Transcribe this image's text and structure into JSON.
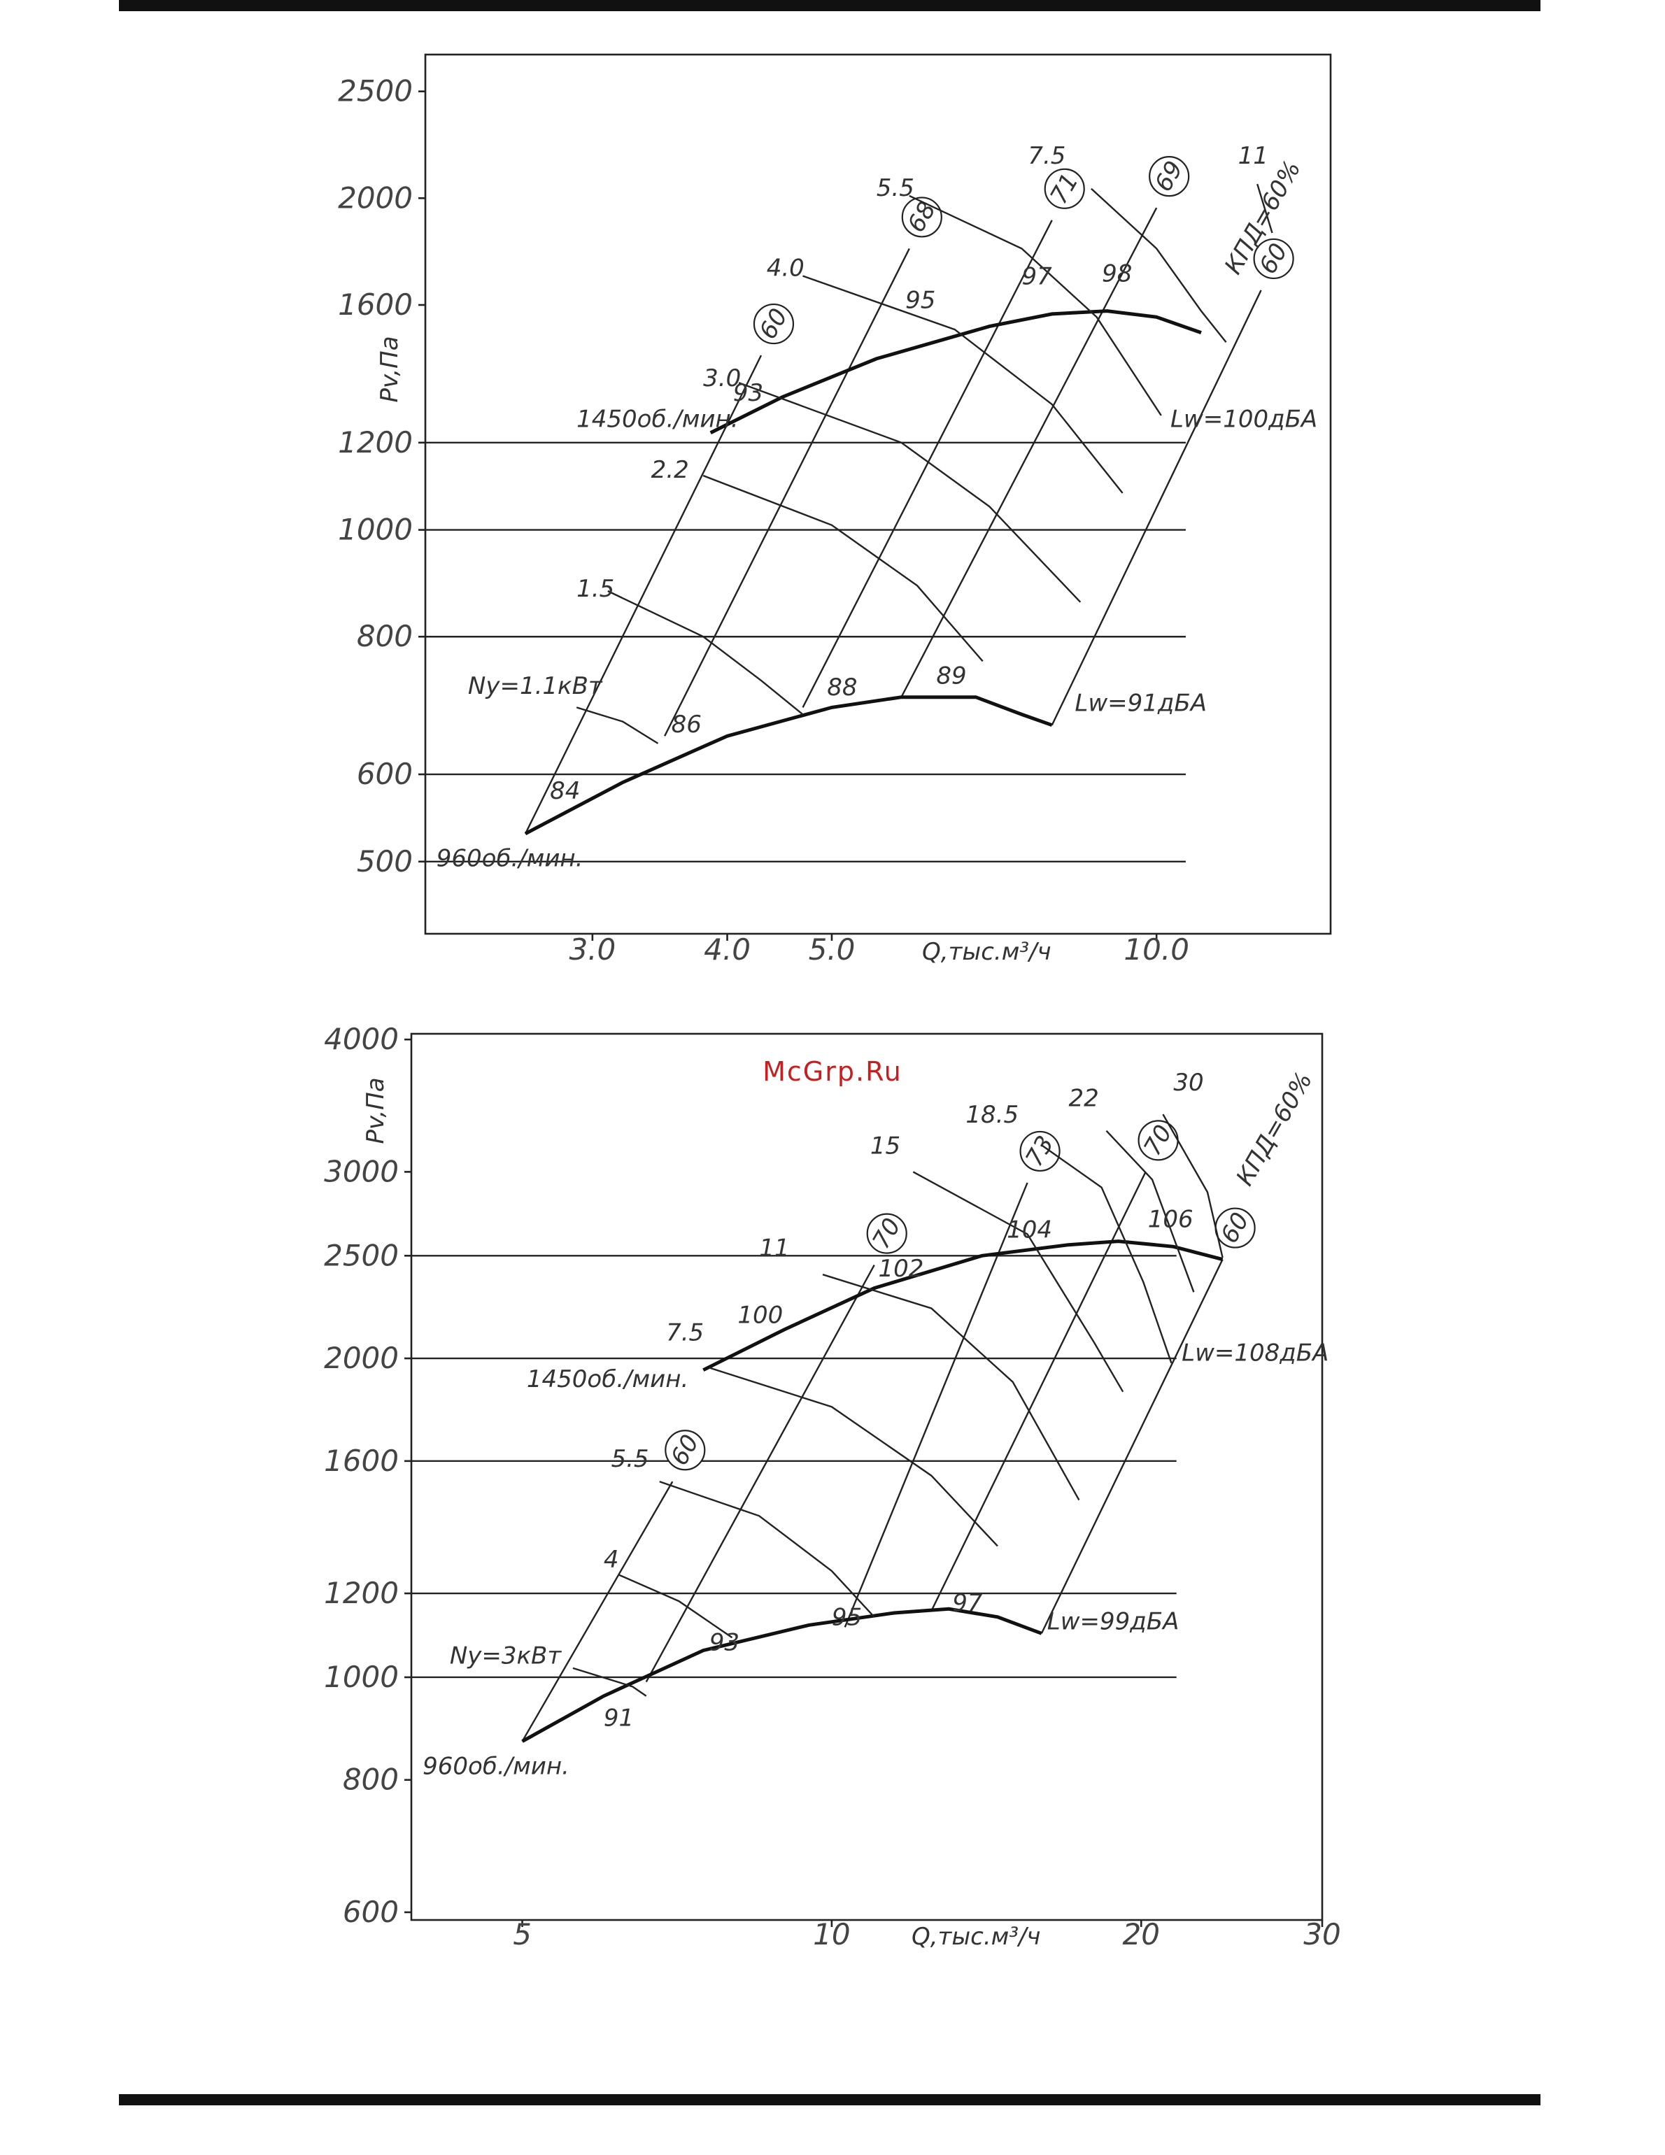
{
  "page": {
    "watermark": "McGrp.Ru"
  },
  "chart_data": [
    {
      "type": "line",
      "title": "",
      "xlabel": "Q,тыс.м³/ч",
      "ylabel": "Pv,Па",
      "x_scale": "log",
      "y_scale": "log",
      "xlim": [
        2.1,
        14.5
      ],
      "ylim": [
        430,
        2700
      ],
      "x_ticks": [
        {
          "v": 3.0,
          "label": "3.0"
        },
        {
          "v": 4.0,
          "label": "4.0"
        },
        {
          "v": 5.0,
          "label": "5.0"
        },
        {
          "v": 10.0,
          "label": "10.0"
        }
      ],
      "y_ticks": [
        {
          "v": 500,
          "label": "500"
        },
        {
          "v": 600,
          "label": "600"
        },
        {
          "v": 800,
          "label": "800"
        },
        {
          "v": 1000,
          "label": "1000"
        },
        {
          "v": 1200,
          "label": "1200"
        },
        {
          "v": 1600,
          "label": "1600"
        },
        {
          "v": 2000,
          "label": "2000"
        },
        {
          "v": 2500,
          "label": "2500"
        }
      ],
      "series": [
        {
          "name": "1450об./мин.",
          "bold": true,
          "points": [
            [
              3.86,
              1225
            ],
            [
              4.5,
              1320
            ],
            [
              5.5,
              1430
            ],
            [
              7.0,
              1530
            ],
            [
              8.0,
              1570
            ],
            [
              9.0,
              1580
            ],
            [
              10.0,
              1560
            ],
            [
              11.0,
              1510
            ]
          ]
        },
        {
          "name": "960об./мин.",
          "bold": true,
          "points": [
            [
              2.6,
              530
            ],
            [
              3.2,
              590
            ],
            [
              4.0,
              650
            ],
            [
              5.0,
              690
            ],
            [
              5.8,
              705
            ],
            [
              6.8,
              705
            ],
            [
              7.5,
              680
            ],
            [
              8.0,
              665
            ]
          ]
        },
        {
          "name": "1.5",
          "points": [
            [
              3.1,
              880
            ],
            [
              3.8,
              800
            ],
            [
              4.3,
              730
            ],
            [
              4.7,
              680
            ]
          ]
        },
        {
          "name": "2.2",
          "points": [
            [
              3.8,
              1120
            ],
            [
              5.0,
              1010
            ],
            [
              6.0,
              890
            ],
            [
              6.9,
              760
            ]
          ]
        },
        {
          "name": "3.0",
          "points": [
            [
              4.1,
              1360
            ],
            [
              5.8,
              1200
            ],
            [
              7.0,
              1050
            ],
            [
              8.5,
              860
            ]
          ]
        },
        {
          "name": "4.0",
          "points": [
            [
              4.7,
              1700
            ],
            [
              6.5,
              1520
            ],
            [
              8.0,
              1300
            ],
            [
              9.3,
              1080
            ]
          ]
        },
        {
          "name": "5.5",
          "points": [
            [
              5.9,
              2010
            ],
            [
              7.5,
              1800
            ],
            [
              8.8,
              1560
            ],
            [
              10.1,
              1270
            ]
          ]
        },
        {
          "name": "7.5",
          "points": [
            [
              8.7,
              2040
            ],
            [
              10.0,
              1800
            ],
            [
              11.0,
              1580
            ],
            [
              11.6,
              1480
            ]
          ]
        },
        {
          "name": "11",
          "points": [
            [
              12.4,
              2060
            ],
            [
              12.8,
              1860
            ]
          ]
        },
        {
          "name": "Ny=1.1кВт",
          "points": [
            [
              2.9,
              690
            ],
            [
              3.2,
              670
            ],
            [
              3.45,
              640
            ]
          ]
        }
      ],
      "efficiency_lines": [
        {
          "label": "60",
          "points": [
            [
              2.6,
              530
            ],
            [
              4.3,
              1440
            ]
          ]
        },
        {
          "label": "68",
          "points": [
            [
              3.5,
              650
            ],
            [
              5.9,
              1800
            ]
          ]
        },
        {
          "label": "71",
          "points": [
            [
              4.7,
              690
            ],
            [
              8.0,
              1910
            ]
          ]
        },
        {
          "label": "69",
          "points": [
            [
              5.8,
              705
            ],
            [
              10.0,
              1960
            ]
          ]
        },
        {
          "label": "60",
          "points": [
            [
              8.0,
              665
            ],
            [
              12.5,
              1650
            ]
          ]
        }
      ],
      "noise_labels": [
        {
          "text": "84",
          "at": [
            2.74,
            570
          ]
        },
        {
          "text": "86",
          "at": [
            3.55,
            655
          ]
        },
        {
          "text": "88",
          "at": [
            4.95,
            708
          ]
        },
        {
          "text": "89",
          "at": [
            6.25,
            725
          ]
        },
        {
          "text": "93",
          "at": [
            4.05,
            1310
          ]
        },
        {
          "text": "95",
          "at": [
            5.85,
            1590
          ]
        },
        {
          "text": "97",
          "at": [
            7.5,
            1670
          ]
        },
        {
          "text": "98",
          "at": [
            8.9,
            1680
          ]
        }
      ],
      "annotations": [
        {
          "text": "1450об./мин.",
          "at": [
            2.9,
            1240
          ]
        },
        {
          "text": "960об./мин.",
          "at": [
            2.15,
            495
          ]
        },
        {
          "text": "Ny=1.1кВт",
          "at": [
            2.3,
            710
          ]
        },
        {
          "text": "Lw=100дБА",
          "at": [
            10.3,
            1240
          ]
        },
        {
          "text": "Lw=91дБА",
          "at": [
            8.4,
            685
          ]
        },
        {
          "text": "КПД=60%",
          "at": [
            11.9,
            1700
          ]
        },
        {
          "text": "1.5",
          "at": [
            2.9,
            870
          ]
        },
        {
          "text": "2.2",
          "at": [
            3.4,
            1115
          ]
        },
        {
          "text": "3.0",
          "at": [
            3.8,
            1350
          ]
        },
        {
          "text": "4.0",
          "at": [
            4.35,
            1700
          ]
        },
        {
          "text": "5.5",
          "at": [
            5.5,
            2010
          ]
        },
        {
          "text": "7.5",
          "at": [
            7.6,
            2150
          ]
        },
        {
          "text": "11",
          "at": [
            11.9,
            2150
          ]
        }
      ]
    },
    {
      "type": "line",
      "title": "",
      "xlabel": "Q,тыс.м³/ч",
      "ylabel": "Pv,Па",
      "x_scale": "log",
      "y_scale": "log",
      "xlim": [
        3.9,
        30
      ],
      "ylim": [
        590,
        4050
      ],
      "x_ticks": [
        {
          "v": 5,
          "label": "5"
        },
        {
          "v": 10,
          "label": "10"
        },
        {
          "v": 20,
          "label": "20"
        },
        {
          "v": 30,
          "label": "30"
        }
      ],
      "y_ticks": [
        {
          "v": 600,
          "label": "600"
        },
        {
          "v": 800,
          "label": "800"
        },
        {
          "v": 1000,
          "label": "1000"
        },
        {
          "v": 1200,
          "label": "1200"
        },
        {
          "v": 1600,
          "label": "1600"
        },
        {
          "v": 2000,
          "label": "2000"
        },
        {
          "v": 2500,
          "label": "2500"
        },
        {
          "v": 3000,
          "label": "3000"
        },
        {
          "v": 4000,
          "label": "4000"
        }
      ],
      "series": [
        {
          "name": "1450об./мин.",
          "bold": true,
          "points": [
            [
              7.5,
              1950
            ],
            [
              9.0,
              2130
            ],
            [
              11.0,
              2330
            ],
            [
              14.0,
              2500
            ],
            [
              17.0,
              2560
            ],
            [
              19.0,
              2580
            ],
            [
              21.5,
              2550
            ],
            [
              24.0,
              2480
            ]
          ]
        },
        {
          "name": "960об./мин.",
          "bold": true,
          "points": [
            [
              5.0,
              870
            ],
            [
              6.0,
              960
            ],
            [
              7.5,
              1060
            ],
            [
              9.5,
              1120
            ],
            [
              11.5,
              1150
            ],
            [
              13.0,
              1160
            ],
            [
              14.5,
              1140
            ],
            [
              16.0,
              1100
            ]
          ]
        },
        {
          "name": "4",
          "points": [
            [
              6.2,
              1250
            ],
            [
              7.1,
              1180
            ],
            [
              8.0,
              1090
            ]
          ]
        },
        {
          "name": "5.5",
          "points": [
            [
              6.8,
              1530
            ],
            [
              8.5,
              1420
            ],
            [
              10.0,
              1260
            ],
            [
              11.0,
              1140
            ]
          ]
        },
        {
          "name": "7.5",
          "points": [
            [
              7.6,
              1960
            ],
            [
              10.0,
              1800
            ],
            [
              12.5,
              1550
            ],
            [
              14.5,
              1330
            ]
          ]
        },
        {
          "name": "11",
          "points": [
            [
              9.8,
              2400
            ],
            [
              12.5,
              2230
            ],
            [
              15.0,
              1900
            ],
            [
              17.4,
              1470
            ]
          ]
        },
        {
          "name": "15",
          "points": [
            [
              12.0,
              3000
            ],
            [
              15.5,
              2620
            ],
            [
              18.0,
              2070
            ],
            [
              19.2,
              1860
            ]
          ]
        },
        {
          "name": "18.5",
          "points": [
            [
              16.0,
              3180
            ],
            [
              18.3,
              2900
            ],
            [
              20.1,
              2360
            ],
            [
              21.4,
              1980
            ]
          ]
        },
        {
          "name": "22",
          "points": [
            [
              18.5,
              3280
            ],
            [
              20.5,
              2950
            ],
            [
              22.5,
              2310
            ]
          ]
        },
        {
          "name": "30",
          "points": [
            [
              21.0,
              3400
            ],
            [
              23.2,
              2870
            ],
            [
              24.0,
              2490
            ]
          ]
        },
        {
          "name": "Ny=3кВт",
          "points": [
            [
              5.6,
              1020
            ],
            [
              6.4,
              980
            ],
            [
              6.6,
              960
            ]
          ]
        }
      ],
      "efficiency_lines": [
        {
          "label": "60",
          "points": [
            [
              5.0,
              870
            ],
            [
              7.0,
              1530
            ]
          ]
        },
        {
          "label": "70",
          "points": [
            [
              6.6,
              990
            ],
            [
              11.0,
              2450
            ]
          ]
        },
        {
          "label": "73",
          "points": [
            [
              10.3,
              1115
            ],
            [
              15.5,
              2930
            ]
          ]
        },
        {
          "label": "70",
          "points": [
            [
              12.5,
              1155
            ],
            [
              20.2,
              3000
            ]
          ]
        },
        {
          "label": "60",
          "points": [
            [
              16.0,
              1100
            ],
            [
              24.0,
              2480
            ]
          ]
        }
      ],
      "noise_labels": [
        {
          "text": "91",
          "at": [
            6.0,
            900
          ]
        },
        {
          "text": "93",
          "at": [
            7.6,
            1060
          ]
        },
        {
          "text": "95",
          "at": [
            10.0,
            1120
          ]
        },
        {
          "text": "97",
          "at": [
            13.1,
            1155
          ]
        },
        {
          "text": "100",
          "at": [
            8.1,
            2160
          ]
        },
        {
          "text": "102",
          "at": [
            11.1,
            2390
          ]
        },
        {
          "text": "104",
          "at": [
            14.8,
            2600
          ]
        },
        {
          "text": "106",
          "at": [
            20.3,
            2660
          ]
        }
      ],
      "annotations": [
        {
          "text": "1450об./мин.",
          "at": [
            5.05,
            1880
          ]
        },
        {
          "text": "960об./мин.",
          "at": [
            4.0,
            810
          ]
        },
        {
          "text": "Ny=3кВт",
          "at": [
            4.25,
            1030
          ]
        },
        {
          "text": "Lw=108дБА",
          "at": [
            21.9,
            1990
          ]
        },
        {
          "text": "Lw=99дБА",
          "at": [
            16.2,
            1110
          ]
        },
        {
          "text": "КПД=60%",
          "at": [
            25.5,
            2900
          ]
        },
        {
          "text": "4",
          "at": [
            6.0,
            1270
          ]
        },
        {
          "text": "5.5",
          "at": [
            6.1,
            1580
          ]
        },
        {
          "text": "7.5",
          "at": [
            6.9,
            2080
          ]
        },
        {
          "text": "11",
          "at": [
            8.5,
            2500
          ]
        },
        {
          "text": "15",
          "at": [
            10.9,
            3120
          ]
        },
        {
          "text": "18.5",
          "at": [
            13.5,
            3340
          ]
        },
        {
          "text": "22",
          "at": [
            17.0,
            3460
          ]
        },
        {
          "text": "30",
          "at": [
            21.5,
            3580
          ]
        }
      ]
    }
  ]
}
